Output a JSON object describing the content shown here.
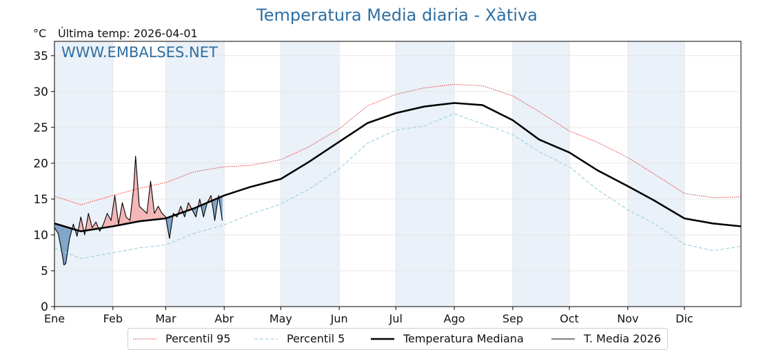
{
  "page": {
    "title": "Temperatura Media diaria - Xàtiva",
    "unit": "°C",
    "last_temp_label": "Última temp:",
    "last_temp_date": "2026-04-01",
    "watermark": "WWW.EMBALSES.NET"
  },
  "legend": {
    "p95": "Percentil 95",
    "p5": "Percentil 5",
    "median": "Temperatura Mediana",
    "current": "T. Media 2026"
  },
  "colors": {
    "p95": "#e32222",
    "p5": "#a6d6e2",
    "median": "#000000",
    "current": "#000000",
    "above_fill": "#f4b6b6",
    "below_fill": "#82a6c9",
    "month_band": "#eaf1f8",
    "title": "#2f6ea1"
  },
  "chart_data": {
    "type": "line",
    "title": "Temperatura Media diaria - Xàtiva",
    "ylabel": "°C",
    "ylim": [
      0,
      37
    ],
    "yticks": [
      0,
      5,
      10,
      15,
      20,
      25,
      30,
      35
    ],
    "xlim": [
      1,
      365
    ],
    "grid": true,
    "legend_position": "bottom",
    "months": [
      "Ene",
      "Feb",
      "Mar",
      "Abr",
      "May",
      "Jun",
      "Jul",
      "Ago",
      "Sep",
      "Oct",
      "Nov",
      "Dic"
    ],
    "month_start_days": [
      1,
      32,
      60,
      91,
      121,
      152,
      182,
      213,
      244,
      274,
      305,
      335
    ],
    "shaded_months": [
      "Ene",
      "Mar",
      "May",
      "Jul",
      "Sep",
      "Nov"
    ],
    "series": [
      {
        "name": "Percentil 95",
        "style": "dotted",
        "days": [
          1,
          15,
          32,
          46,
          60,
          75,
          91,
          105,
          121,
          136,
          152,
          167,
          182,
          197,
          213,
          228,
          244,
          258,
          274,
          289,
          305,
          319,
          335,
          350,
          365
        ],
        "values": [
          15.4,
          14.2,
          15.5,
          16.5,
          17.3,
          18.8,
          19.5,
          19.7,
          20.5,
          22.3,
          24.8,
          28.0,
          29.6,
          30.5,
          31.0,
          30.8,
          29.4,
          27.2,
          24.5,
          22.9,
          20.8,
          18.5,
          15.8,
          15.2,
          15.3
        ]
      },
      {
        "name": "Percentil 5",
        "style": "dashed",
        "days": [
          1,
          15,
          32,
          46,
          60,
          75,
          91,
          105,
          121,
          136,
          152,
          167,
          182,
          197,
          213,
          228,
          244,
          258,
          274,
          289,
          305,
          319,
          335,
          350,
          365
        ],
        "values": [
          8.2,
          6.7,
          7.5,
          8.2,
          8.6,
          10.2,
          11.4,
          12.9,
          14.3,
          16.4,
          19.2,
          22.8,
          24.6,
          25.2,
          26.9,
          25.5,
          24.0,
          21.6,
          19.5,
          16.3,
          13.5,
          11.6,
          8.7,
          7.8,
          8.4
        ]
      },
      {
        "name": "Temperatura Mediana",
        "style": "solid-thick",
        "days": [
          1,
          15,
          32,
          46,
          60,
          75,
          91,
          105,
          121,
          136,
          152,
          167,
          182,
          197,
          213,
          228,
          244,
          258,
          274,
          289,
          305,
          319,
          335,
          350,
          365
        ],
        "values": [
          11.6,
          10.5,
          11.2,
          11.9,
          12.3,
          13.7,
          15.5,
          16.7,
          17.8,
          20.2,
          23.0,
          25.6,
          27.0,
          27.9,
          28.4,
          28.1,
          26.0,
          23.3,
          21.5,
          19.0,
          16.8,
          14.8,
          12.3,
          11.6,
          11.2
        ]
      },
      {
        "name": "T. Media 2026",
        "style": "solid-thin",
        "fill_vs_median": true,
        "days": [
          1,
          3,
          5,
          6,
          7,
          9,
          11,
          13,
          15,
          17,
          19,
          21,
          23,
          25,
          27,
          29,
          31,
          33,
          35,
          37,
          39,
          41,
          43,
          44,
          46,
          48,
          50,
          52,
          54,
          56,
          58,
          60,
          62,
          64,
          66,
          68,
          70,
          72,
          74,
          76,
          78,
          80,
          82,
          84,
          86,
          88,
          90
        ],
        "values": [
          11.0,
          10.2,
          7.5,
          5.8,
          6.0,
          9.5,
          11.5,
          9.8,
          12.5,
          10.0,
          13.0,
          11.0,
          11.8,
          10.5,
          11.5,
          13.0,
          12.0,
          15.5,
          11.5,
          14.5,
          12.5,
          12.0,
          16.5,
          21.0,
          14.0,
          13.5,
          13.0,
          17.5,
          13.0,
          14.0,
          13.0,
          12.5,
          9.5,
          13.0,
          12.5,
          14.0,
          12.5,
          14.5,
          13.5,
          12.5,
          15.0,
          12.5,
          14.5,
          15.5,
          12.0,
          15.5,
          12.0
        ]
      }
    ]
  }
}
